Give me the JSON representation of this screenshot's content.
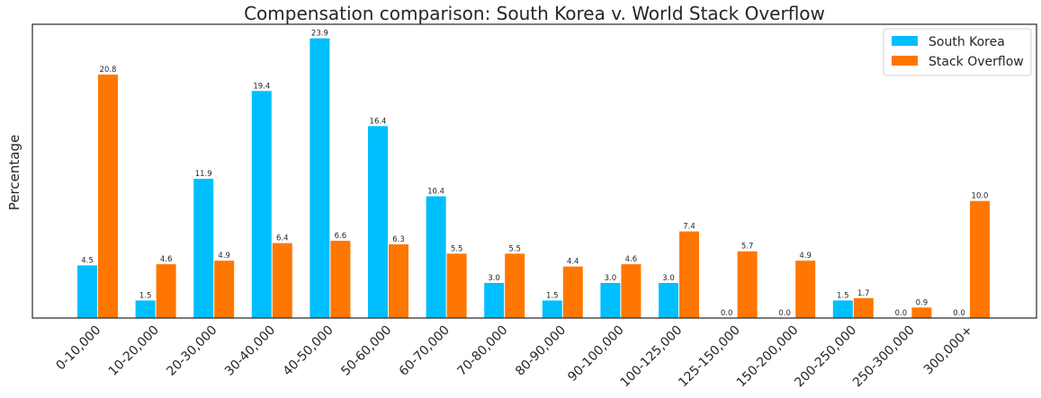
{
  "chart_data": {
    "type": "bar",
    "title": "Compensation comparison: South Korea v. World Stack Overflow",
    "xlabel": "",
    "ylabel": "Percentage",
    "ylim": [
      0,
      25.1
    ],
    "grid": false,
    "legend_position": "top-right",
    "categories": [
      "0-10,000",
      "10-20,000",
      "20-30,000",
      "30-40,000",
      "40-50,000",
      "50-60,000",
      "60-70,000",
      "70-80,000",
      "80-90,000",
      "90-100,000",
      "100-125,000",
      "125-150,000",
      "150-200,000",
      "200-250,000",
      "250-300,000",
      "300,000+"
    ],
    "series": [
      {
        "name": "South Korea",
        "color": "#00bfff",
        "values": [
          4.5,
          1.5,
          11.9,
          19.4,
          23.9,
          16.4,
          10.4,
          3.0,
          1.5,
          3.0,
          3.0,
          0.0,
          0.0,
          1.5,
          0.0,
          0.0
        ],
        "labels": [
          "4.5",
          "1.5",
          "11.9",
          "19.4",
          "23.9",
          "16.4",
          "10.4",
          "3.0",
          "1.5",
          "3.0",
          "3.0",
          "0.0",
          "0.0",
          "1.5",
          "0.0",
          "0.0"
        ]
      },
      {
        "name": "Stack Overflow",
        "color": "#ff7700",
        "values": [
          20.8,
          4.6,
          4.9,
          6.4,
          6.6,
          6.3,
          5.5,
          5.5,
          4.4,
          4.6,
          7.4,
          5.7,
          4.9,
          1.7,
          0.9,
          10.0
        ],
        "labels": [
          "20.8",
          "4.6",
          "4.9",
          "6.4",
          "6.6",
          "6.3",
          "5.5",
          "5.5",
          "4.4",
          "4.6",
          "7.4",
          "5.7",
          "4.9",
          "1.7",
          "0.9",
          "10.0"
        ]
      }
    ]
  }
}
